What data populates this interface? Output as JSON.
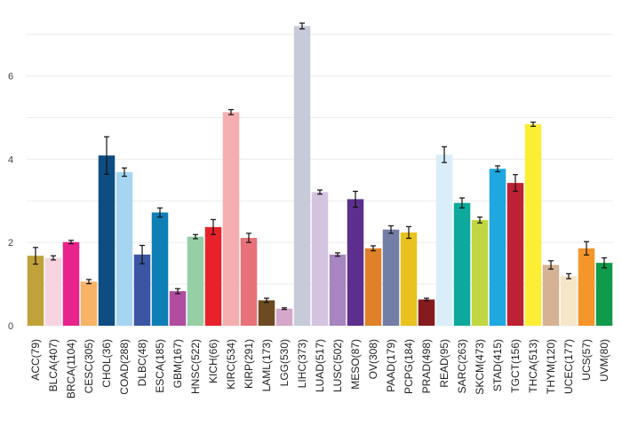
{
  "chart_data": {
    "type": "bar",
    "title": "",
    "xlabel": "",
    "ylabel": "",
    "ylim": [
      0,
      7.4
    ],
    "y_ticks": [
      0,
      2,
      4,
      6
    ],
    "grid": "horizontal",
    "legend": "none",
    "categories": [
      "ACC(79)",
      "BLCA(407)",
      "BRCA(1104)",
      "CESC(305)",
      "CHOL(36)",
      "COAD(288)",
      "DLBC(48)",
      "ESCA(185)",
      "GBM(167)",
      "HNSC(522)",
      "KICH(66)",
      "KIRC(534)",
      "KIRP(291)",
      "LAML(173)",
      "LGG(530)",
      "LIHC(373)",
      "LUAD(517)",
      "LUSC(502)",
      "MESO(87)",
      "OV(308)",
      "PAAD(179)",
      "PCPG(184)",
      "PRAD(498)",
      "READ(95)",
      "SARC(263)",
      "SKCM(473)",
      "STAD(415)",
      "TGCT(156)",
      "THCA(513)",
      "THYM(120)",
      "UCEC(177)",
      "UCS(57)",
      "UVM(80)"
    ],
    "values": [
      1.68,
      1.63,
      2.01,
      1.06,
      4.09,
      3.69,
      1.71,
      2.72,
      0.83,
      2.14,
      2.37,
      5.13,
      2.11,
      0.61,
      0.41,
      7.2,
      3.21,
      1.71,
      3.04,
      1.86,
      2.31,
      2.24,
      0.63,
      4.11,
      2.95,
      2.54,
      3.77,
      3.43,
      4.84,
      1.46,
      1.19,
      1.86,
      1.51
    ],
    "errors": [
      0.2,
      0.05,
      0.04,
      0.05,
      0.45,
      0.1,
      0.22,
      0.11,
      0.06,
      0.05,
      0.18,
      0.06,
      0.11,
      0.05,
      0.02,
      0.07,
      0.05,
      0.04,
      0.19,
      0.06,
      0.09,
      0.14,
      0.03,
      0.19,
      0.12,
      0.07,
      0.07,
      0.2,
      0.05,
      0.1,
      0.06,
      0.16,
      0.12
    ],
    "colors": [
      "#c1a13a",
      "#f7d4df",
      "#e8248c",
      "#f8b366",
      "#0f4c81",
      "#a6d5f2",
      "#3b55a3",
      "#0e7fb5",
      "#b14da0",
      "#96cfa6",
      "#e7222a",
      "#f4aeb0",
      "#e8727a",
      "#6d4a22",
      "#d4a7cb",
      "#c7cad9",
      "#d5c4df",
      "#a785c0",
      "#5c2e8d",
      "#df8129",
      "#737ea6",
      "#e8c21e",
      "#861b1f",
      "#d9eef9",
      "#0da99c",
      "#c1d640",
      "#1fa7df",
      "#bd2134",
      "#fbee35",
      "#d4b293",
      "#f6e6c8",
      "#f4962a",
      "#109a4c"
    ]
  }
}
